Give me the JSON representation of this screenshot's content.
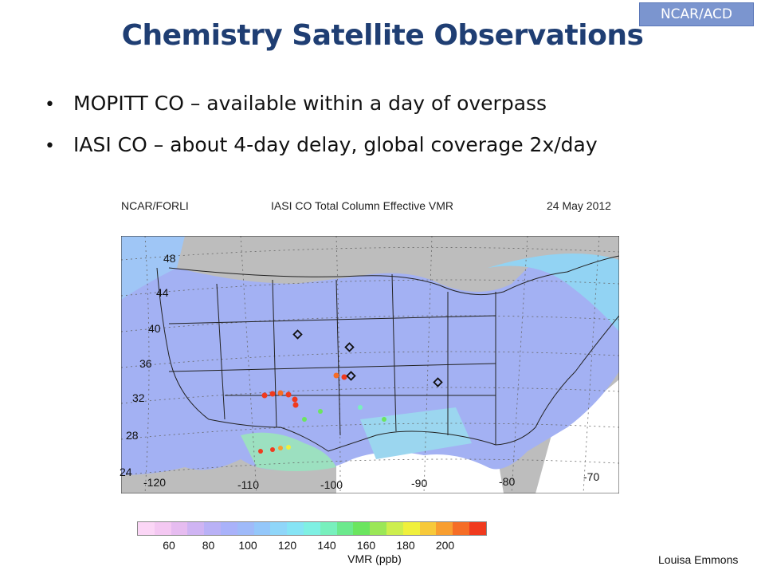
{
  "badge": "NCAR/ACD",
  "title": "Chemistry Satellite Observations",
  "bullets": [
    "MOPITT CO – available within a day of overpass",
    "IASI CO – about 4-day delay, global coverage 2x/day"
  ],
  "figure": {
    "source": "NCAR/FORLI",
    "title": "IASI CO Total Column Effective VMR",
    "date": "24 May 2012",
    "lat_labels": [
      "48",
      "44",
      "40",
      "36",
      "32",
      "28",
      "24"
    ],
    "lon_labels": [
      "-120",
      "-110",
      "-100",
      "-90",
      "-80",
      "-70"
    ],
    "colorbar": {
      "colors": [
        "#fbd6f6",
        "#f4c8f2",
        "#e6bcf0",
        "#cfb4f3",
        "#b9b1f6",
        "#a9b2fa",
        "#9fbaf9",
        "#94c7fa",
        "#8fd6f9",
        "#86e4f5",
        "#7ff0e3",
        "#78f0bd",
        "#6ce98d",
        "#6be55f",
        "#9be757",
        "#cdee4e",
        "#f0f03d",
        "#f7c93a",
        "#f89e30",
        "#f56d26",
        "#f03a1e"
      ],
      "tick_labels": [
        "60",
        "80",
        "100",
        "120",
        "140",
        "160",
        "180",
        "200"
      ],
      "label": "VMR (ppb)"
    }
  },
  "author": "Louisa Emmons"
}
